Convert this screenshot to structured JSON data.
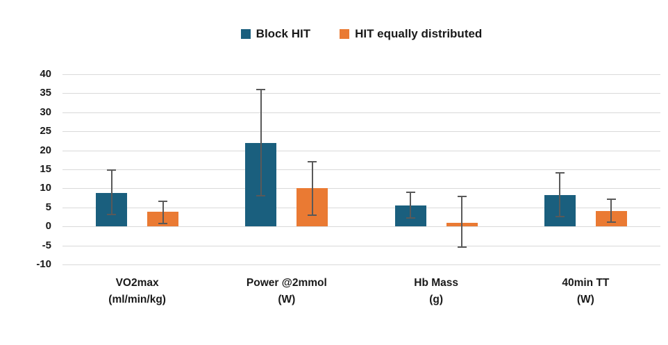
{
  "chart_data": {
    "type": "bar",
    "title": "",
    "xlabel": "",
    "ylabel": "",
    "ylim": [
      -10,
      40
    ],
    "ytick_step": 5,
    "y_ticks": [
      40,
      35,
      30,
      25,
      20,
      15,
      10,
      5,
      0,
      -5,
      -10
    ],
    "grid": true,
    "legend_position": "top",
    "categories": [
      {
        "label": "VO2max",
        "unit": "(ml/min/kg)"
      },
      {
        "label": "Power @2mmol",
        "unit": "(W)"
      },
      {
        "label": "Hb Mass",
        "unit": "(g)"
      },
      {
        "label": "40min TT",
        "unit": "(W)"
      }
    ],
    "series": [
      {
        "name": "Block HIT",
        "color": "#1a5f7e",
        "values": [
          8.8,
          22,
          5.5,
          8.2
        ],
        "error_low": [
          3.1,
          8,
          2.2,
          2.6
        ],
        "error_high": [
          14.8,
          36,
          9,
          14
        ]
      },
      {
        "name": "HIT equally distributed",
        "color": "#ea7a33",
        "values": [
          3.8,
          10,
          1,
          4
        ],
        "error_low": [
          0.8,
          3,
          -5.5,
          1.1
        ],
        "error_high": [
          6.6,
          17,
          7.8,
          7.2
        ]
      }
    ],
    "colors": {
      "gridline": "#d9d9d9",
      "error_bar": "#595959",
      "text": "#191919",
      "background": "#ffffff"
    }
  }
}
